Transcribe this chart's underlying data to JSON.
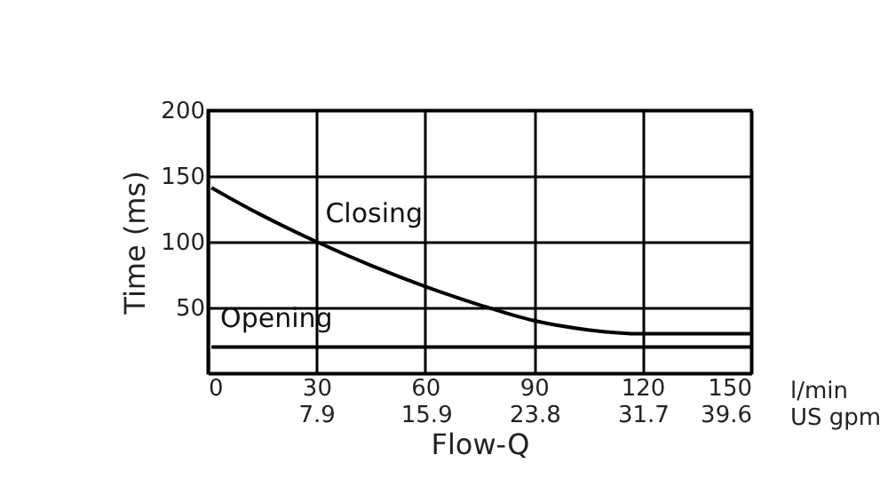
{
  "chart_data": {
    "type": "line",
    "xlabel": "Flow-Q",
    "ylabel": "Time (ms)",
    "xlim": [
      0,
      150
    ],
    "ylim": [
      0,
      200
    ],
    "xticks": [
      0,
      30,
      60,
      90,
      120,
      150
    ],
    "x2lim": [
      0,
      39.6
    ],
    "x2ticks": [
      7.9,
      15.9,
      23.8,
      31.7,
      39.6
    ],
    "yticks": [
      50,
      100,
      150,
      200
    ],
    "grid": true,
    "legend": false,
    "marker": "none",
    "line_style": "solid",
    "annotations": [
      "l/min",
      "US gpm"
    ],
    "series": [
      {
        "name": "Closing",
        "color": "#000000",
        "x": [
          1,
          15,
          30,
          45,
          60,
          75,
          90,
          105,
          120,
          135,
          150
        ],
        "values": [
          141,
          120,
          100,
          82,
          66,
          52,
          40,
          33,
          30,
          30,
          30
        ]
      },
      {
        "name": "Opening",
        "color": "#000000",
        "x": [
          1,
          150
        ],
        "values": [
          20,
          20
        ]
      }
    ]
  }
}
